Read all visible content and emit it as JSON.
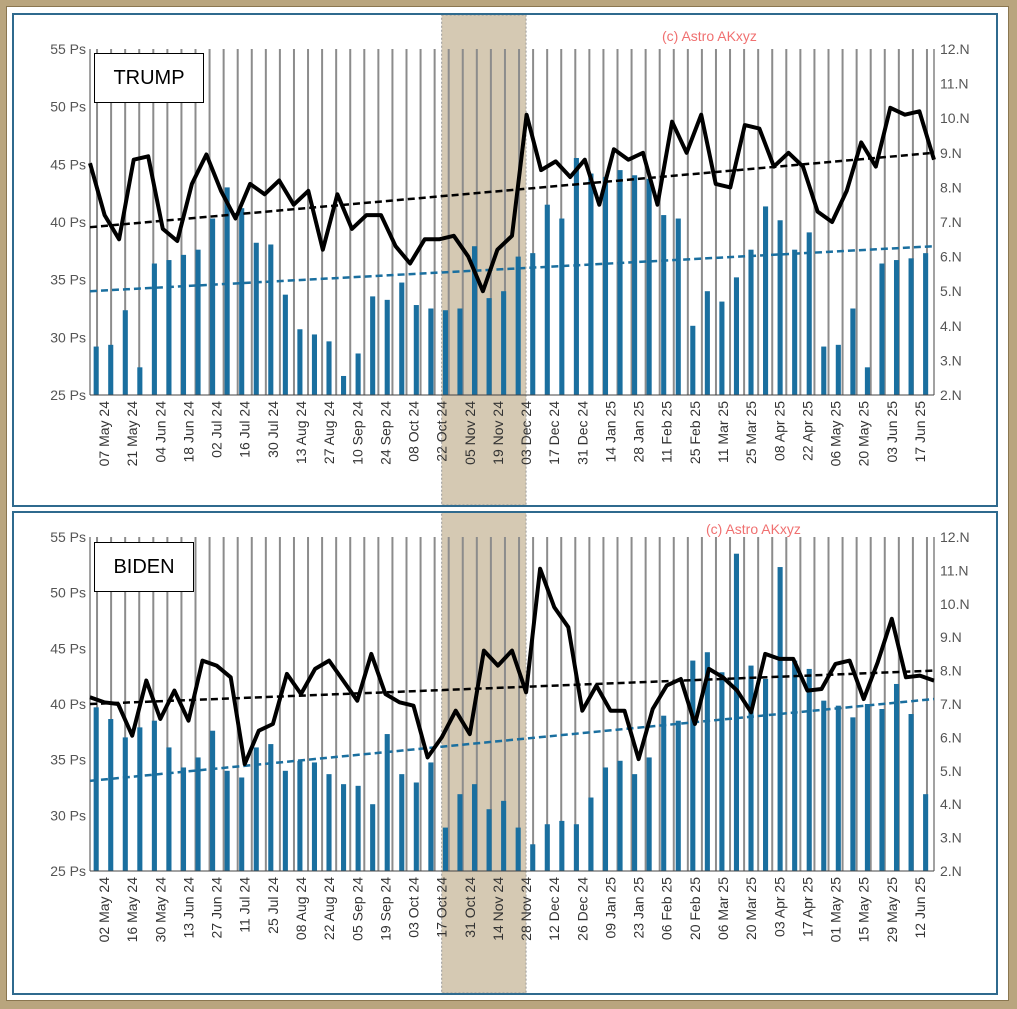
{
  "watermark": "(c) Astro AKxyz",
  "colors": {
    "bars": "#1a6f9f",
    "line": "#000000",
    "trend_line": "#000000",
    "trend_bars": "#1a6f9f",
    "gridline": "#8c8c8c",
    "highlight": "#c8b89a",
    "frame": "#2f6a8e"
  },
  "chart_data": [
    {
      "type": "bar+line",
      "name": "TRUMP",
      "title": "TRUMP",
      "y_left_ticks": [
        "55 Ps",
        "50 Ps",
        "45 Ps",
        "40 Ps",
        "35 Ps",
        "30 Ps",
        "25 Ps"
      ],
      "y_left_range": [
        25,
        55
      ],
      "y_right_ticks": [
        "12.N",
        "11.N",
        "10.N",
        "9.N",
        "8.N",
        "7.N",
        "6.N",
        "5.N",
        "4.N",
        "3.N",
        "2.N"
      ],
      "y_right_range": [
        2,
        12
      ],
      "x_tick_labels": [
        "07 May 24",
        "21 May 24",
        "04 Jun 24",
        "18 Jun 24",
        "02 Jul 24",
        "16 Jul 24",
        "30 Jul 24",
        "13 Aug 24",
        "27 Aug 24",
        "10 Sep 24",
        "24 Sep 24",
        "08 Oct 24",
        "22 Oct 24",
        "05 Nov 24",
        "19 Nov 24",
        "03 Dec 24",
        "17 Dec 24",
        "31 Dec 24",
        "14 Jan 25",
        "28 Jan 25",
        "11 Feb 25",
        "25 Feb 25",
        "11 Mar 25",
        "25 Mar 25",
        "08 Apr 25",
        "22 Apr 25",
        "06 May 25",
        "20 May 25",
        "03 Jun 25",
        "17 Jun 25"
      ],
      "highlight_ticks": [
        13,
        14
      ],
      "bars_right_axis": [
        3.4,
        3.45,
        4.45,
        2.8,
        5.8,
        5.9,
        6.05,
        6.2,
        7.1,
        8.0,
        7.4,
        6.4,
        6.35,
        4.9,
        3.9,
        3.75,
        3.55,
        2.55,
        3.2,
        4.85,
        4.75,
        5.25,
        4.6,
        4.5,
        4.45,
        4.5,
        6.3,
        4.8,
        5.0,
        6.0,
        6.1,
        7.5,
        7.1,
        8.85,
        8.4,
        8.3,
        8.5,
        8.35,
        8.25,
        7.2,
        7.1,
        4.0,
        5.0,
        4.7,
        5.4,
        6.2,
        7.45,
        7.05,
        6.2,
        6.7,
        3.4,
        3.45,
        4.5,
        2.8,
        5.8,
        5.9,
        5.95,
        6.1
      ],
      "line_right_axis": [
        8.7,
        7.2,
        6.5,
        8.8,
        8.9,
        6.8,
        6.45,
        8.1,
        8.95,
        7.9,
        7.1,
        8.1,
        7.8,
        8.2,
        7.5,
        7.9,
        6.2,
        7.8,
        6.8,
        7.2,
        7.2,
        6.3,
        5.8,
        6.5,
        6.5,
        6.6,
        6.0,
        5.0,
        6.2,
        6.6,
        10.1,
        8.5,
        8.75,
        8.3,
        8.8,
        7.5,
        9.1,
        8.8,
        9.0,
        7.5,
        9.9,
        9.0,
        10.1,
        8.1,
        8.0,
        9.8,
        9.7,
        8.6,
        9.0,
        8.6,
        7.3,
        7.0,
        7.9,
        9.3,
        8.6,
        10.3,
        10.1,
        10.2,
        8.8
      ],
      "trend_line_right_axis": [
        6.85,
        9.0
      ],
      "trend_bars_right_axis": [
        5.0,
        6.3
      ]
    },
    {
      "type": "bar+line",
      "name": "BIDEN",
      "title": "BIDEN",
      "y_left_ticks": [
        "55 Ps",
        "50 Ps",
        "45 Ps",
        "40 Ps",
        "35 Ps",
        "30 Ps",
        "25 Ps"
      ],
      "y_left_range": [
        25,
        55
      ],
      "y_right_ticks": [
        "12.N",
        "11.N",
        "10.N",
        "9.N",
        "8.N",
        "7.N",
        "6.N",
        "5.N",
        "4.N",
        "3.N",
        "2.N"
      ],
      "y_right_range": [
        2,
        12
      ],
      "x_tick_labels": [
        "02 May 24",
        "16 May 24",
        "30 May 24",
        "13 Jun 24",
        "27 Jun 24",
        "11 Jul 24",
        "25 Jul 24",
        "08 Aug 24",
        "22 Aug 24",
        "05 Sep 24",
        "19 Sep 24",
        "03 Oct 24",
        "17 Oct 24",
        "31 Oct 24",
        "14 Nov 24",
        "28 Nov 24",
        "12 Dec 24",
        "26 Dec 24",
        "09 Jan 25",
        "23 Jan 25",
        "06 Feb 25",
        "20 Feb 25",
        "06 Mar 25",
        "20 Mar 25",
        "03 Apr 25",
        "17 Apr 25",
        "01 May 25",
        "15 May 25",
        "29 May 25",
        "12 Jun 25"
      ],
      "highlight_ticks": [
        13,
        14
      ],
      "bars_right_axis": [
        6.9,
        6.55,
        6.0,
        6.3,
        6.5,
        5.7,
        5.1,
        5.4,
        6.2,
        5.0,
        4.8,
        5.7,
        5.8,
        5.0,
        5.3,
        5.25,
        4.9,
        4.6,
        4.55,
        4.0,
        6.1,
        4.9,
        4.65,
        5.25,
        3.3,
        4.3,
        4.6,
        3.85,
        4.1,
        3.3,
        2.8,
        3.4,
        3.5,
        3.4,
        4.2,
        5.1,
        5.3,
        4.9,
        5.4,
        6.65,
        6.5,
        8.3,
        8.55,
        7.95,
        11.5,
        8.15,
        7.75,
        11.1,
        8.3,
        8.05,
        7.1,
        6.95,
        6.6,
        7.0,
        6.85,
        7.6,
        6.7,
        4.3
      ],
      "line_right_axis": [
        7.2,
        7.05,
        7.0,
        6.05,
        7.7,
        6.55,
        7.4,
        6.5,
        8.3,
        8.15,
        7.8,
        5.2,
        6.2,
        6.4,
        7.9,
        7.3,
        8.05,
        8.3,
        7.7,
        7.1,
        8.5,
        7.3,
        7.05,
        6.95,
        5.4,
        6.0,
        6.8,
        6.1,
        8.6,
        8.15,
        8.6,
        7.35,
        11.05,
        9.9,
        9.3,
        6.8,
        7.55,
        6.8,
        6.8,
        5.35,
        6.85,
        7.55,
        7.75,
        6.4,
        8.05,
        7.8,
        7.4,
        6.75,
        8.5,
        8.35,
        8.35,
        7.4,
        7.45,
        8.2,
        8.3,
        7.15,
        8.25,
        9.55,
        7.8,
        7.85,
        7.7
      ],
      "trend_line_right_axis": [
        7.0,
        8.0
      ],
      "trend_bars_right_axis": [
        4.7,
        7.15
      ]
    }
  ]
}
